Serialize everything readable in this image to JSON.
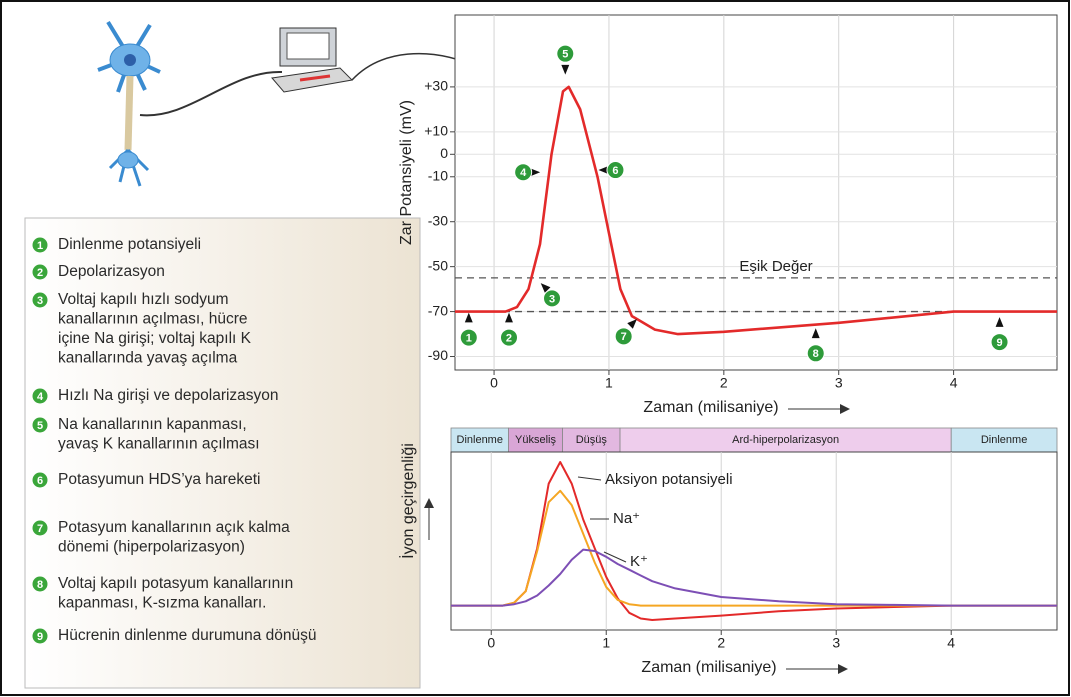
{
  "chart_data": [
    {
      "type": "line",
      "x_label": "Zaman (milisaniye)",
      "y_label": "Zar Potansiyeli (mV)",
      "xlim": [
        -0.34,
        4.9
      ],
      "ylim": [
        -96,
        62
      ],
      "xticks": [
        0,
        1,
        2,
        3,
        4
      ],
      "yticks": [
        {
          "value": 30,
          "label": "+30"
        },
        {
          "value": 10,
          "label": "+10"
        },
        0,
        -10,
        -30,
        -50,
        -70,
        -90
      ],
      "grid": true,
      "color": "#e32a2a",
      "x": [
        -0.34,
        0.1,
        0.2,
        0.3,
        0.4,
        0.5,
        0.6,
        0.65,
        0.75,
        0.9,
        1.0,
        1.1,
        1.2,
        1.4,
        1.6,
        2,
        3,
        4,
        4.9
      ],
      "values": [
        -70,
        -70,
        -68,
        -60,
        -40,
        0,
        28,
        30,
        20,
        -10,
        -35,
        -60,
        -72,
        -78,
        -80,
        -79,
        -75,
        -70,
        -70
      ],
      "hlines": [
        {
          "value": -55,
          "label": "Eşik Değer"
        },
        {
          "value": -70
        }
      ],
      "markers": [
        {
          "label": "1",
          "x": -0.22,
          "y": -70
        },
        {
          "label": "2",
          "x": 0.13,
          "y": -70
        },
        {
          "label": "3",
          "x": 0.4,
          "y": -57
        },
        {
          "label": "4",
          "x": 0.41,
          "y": -8
        },
        {
          "label": "5",
          "x": 0.62,
          "y": 35
        },
        {
          "label": "6",
          "x": 0.9,
          "y": -7
        },
        {
          "label": "7",
          "x": 1.25,
          "y": -73
        },
        {
          "label": "8",
          "x": 2.8,
          "y": -77
        },
        {
          "label": "9",
          "x": 4.4,
          "y": -72
        }
      ]
    },
    {
      "type": "line",
      "x_label": "Zaman (milisaniye)",
      "y_label": "İyon geçirgenliği",
      "xlim": [
        -0.35,
        4.92
      ],
      "ylim": [
        -17,
        107
      ],
      "xticks": [
        0,
        1,
        2,
        3,
        4
      ],
      "grid": true,
      "phases": [
        {
          "label": "Dinlenme",
          "start": -0.35,
          "end": 0.15,
          "color": "#c9e6f2"
        },
        {
          "label": "Yükseliş",
          "start": 0.15,
          "end": 0.62,
          "color": "#d9a6d6"
        },
        {
          "label": "Düşüş",
          "start": 0.62,
          "end": 1.12,
          "color": "#e2b8e0"
        },
        {
          "label": "Ard-hiperpolarizasyon",
          "start": 1.12,
          "end": 4,
          "color": "#eecdec"
        },
        {
          "label": "Dinlenme",
          "start": 4,
          "end": 4.92,
          "color": "#c9e6f2"
        }
      ],
      "x": [
        -0.35,
        0,
        0.1,
        0.2,
        0.3,
        0.4,
        0.5,
        0.6,
        0.7,
        0.8,
        0.9,
        1.0,
        1.1,
        1.2,
        1.3,
        1.4,
        1.6,
        2,
        2.5,
        3,
        3.5,
        4,
        4.92
      ],
      "series": [
        {
          "name": "Aksiyon potansiyeli",
          "color": "#e32a2a",
          "values": [
            0,
            0,
            0,
            2,
            10,
            40,
            85,
            100,
            85,
            60,
            40,
            20,
            5,
            -5,
            -9,
            -10,
            -9,
            -7,
            -4,
            -2,
            -1,
            0,
            0
          ]
        },
        {
          "name": "Na⁺",
          "color": "#f5a623",
          "values": [
            0,
            0,
            0,
            2,
            10,
            38,
            72,
            80,
            70,
            50,
            30,
            13,
            4,
            1,
            0,
            0,
            0,
            0,
            0,
            0,
            0,
            0,
            0
          ]
        },
        {
          "name": "K⁺",
          "color": "#7d4fb5",
          "values": [
            0,
            0,
            0,
            1,
            3,
            7,
            14,
            22,
            32,
            39,
            38,
            34,
            29,
            25,
            21,
            17,
            12,
            6,
            3,
            1,
            0.5,
            0,
            0
          ]
        }
      ]
    }
  ],
  "legend_items": [
    {
      "number": "1",
      "lines": [
        "Dinlenme potansiyeli"
      ]
    },
    {
      "number": "2",
      "lines": [
        "Depolarizasyon"
      ]
    },
    {
      "number": "3",
      "lines": [
        "Voltaj kapılı hızlı sodyum",
        "kanallarının açılması, hücre",
        "içine Na girişi; voltaj kapılı K",
        "kanallarında yavaş açılma"
      ]
    },
    {
      "number": "4",
      "lines": [
        "Hızlı Na girişi ve depolarizasyon"
      ]
    },
    {
      "number": "5",
      "lines": [
        "Na kanallarının kapanması,",
        "yavaş K kanallarının açılması"
      ]
    },
    {
      "number": "6",
      "lines": [
        "Potasyumun HDS’ya hareketi"
      ]
    },
    {
      "number": "7",
      "lines": [
        "Potasyum kanallarının açık kalma",
        "dönemi (hiperpolarizasyon)"
      ]
    },
    {
      "number": "8",
      "lines": [
        "Voltaj kapılı potasyum kanallarının",
        "kapanması, K-sızma kanalları."
      ]
    },
    {
      "number": "9",
      "lines": [
        "Hücrenin dinlenme durumuna dönüşü"
      ]
    }
  ]
}
